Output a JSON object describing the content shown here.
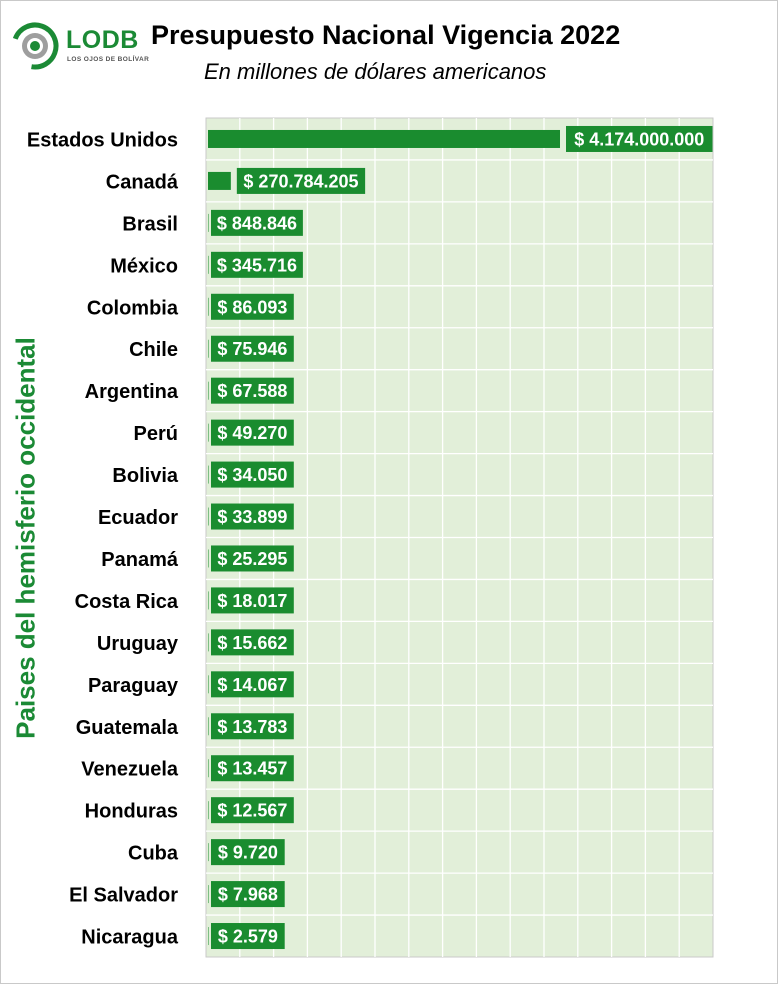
{
  "logo": {
    "name": "LODB",
    "tagline": "LOS OJOS DE BOLÍVAR",
    "colors": {
      "green": "#1b8a35",
      "gray": "#9e9e9e"
    }
  },
  "header": {
    "title": "Presupuesto Nacional Vigencia 2022",
    "subtitle": "En millones de dólares americanos"
  },
  "chart_data": {
    "type": "bar",
    "orientation": "horizontal",
    "title": "Presupuesto Nacional Vigencia 2022",
    "subtitle": "En millones de dólares americanos",
    "ylabel": "Paises del hemisferio occidental",
    "grid": true,
    "colors": {
      "bar": "#1a8c2f",
      "label_bg": "#1a8c2f",
      "label_text": "#ffffff",
      "plot_bg": "#e2efd9",
      "grid": "#ffffff"
    },
    "categories": [
      "Estados Unidos",
      "Canadá",
      "Brasil",
      "México",
      "Colombia",
      "Chile",
      "Argentina",
      "Perú",
      "Bolivia",
      "Ecuador",
      "Panamá",
      "Costa Rica",
      "Uruguay",
      "Paraguay",
      "Guatemala",
      "Venezuela",
      "Honduras",
      "Cuba",
      "El Salvador",
      "Nicaragua"
    ],
    "values": [
      4174000000,
      270784205,
      848846,
      345716,
      86093,
      75946,
      67588,
      49270,
      34050,
      33899,
      25295,
      18017,
      15662,
      14067,
      13783,
      13457,
      12567,
      9720,
      7968,
      2579
    ],
    "data_labels": [
      "$ 4.174.000.000",
      "$ 270.784.205",
      "$ 848.846",
      "$ 345.716",
      "$ 86.093",
      "$ 75.946",
      "$ 67.588",
      "$ 49.270",
      "$ 34.050",
      "$ 33.899",
      "$ 25.295",
      "$ 18.017",
      "$ 15.662",
      "$ 14.067",
      "$ 13.783",
      "$ 13.457",
      "$ 12.567",
      "$ 9.720",
      "$ 7.968",
      "$ 2.579"
    ]
  }
}
